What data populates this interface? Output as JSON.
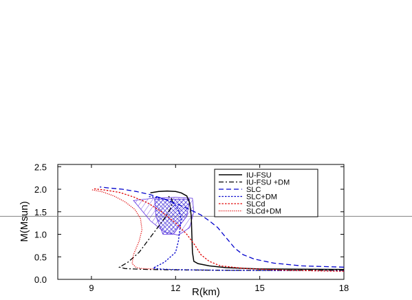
{
  "chart_data": {
    "type": "line",
    "xlabel": "R(km)",
    "ylabel": "M(Msun)",
    "xlim": [
      7.8,
      18
    ],
    "ylim": [
      0,
      2.55
    ],
    "xticks": [
      9,
      12,
      15,
      18
    ],
    "xtick_labels": [
      "9",
      "12",
      "15",
      "18"
    ],
    "yticks": [
      0.0,
      0.5,
      1.0,
      1.5,
      2.0,
      2.5
    ],
    "ytick_labels": [
      "0.0",
      "0.5",
      "1.0",
      "1.5",
      "2.0",
      "2.5"
    ],
    "reference_line": {
      "y": 1.4,
      "color": "#808080"
    },
    "legend_position": "top-right",
    "series": [
      {
        "name": "IU-FSU",
        "color": "#000000",
        "dash": "solid",
        "x": [
          18.0,
          15.0,
          13.8,
          13.2,
          12.8,
          12.65,
          12.6,
          12.58,
          12.56,
          12.5,
          12.4,
          12.2,
          12.0,
          11.7,
          11.4,
          11.1
        ],
        "y": [
          0.22,
          0.23,
          0.26,
          0.3,
          0.35,
          0.4,
          0.6,
          1.0,
          1.4,
          1.7,
          1.85,
          1.92,
          1.95,
          1.96,
          1.95,
          1.92
        ]
      },
      {
        "name": "IU-FSU +DM",
        "color": "#000000",
        "dash": "dashdot",
        "x": [
          18.0,
          14.0,
          12.0,
          11.0,
          10.5,
          10.2,
          10.0,
          10.3,
          10.7,
          11.0,
          11.3,
          11.6,
          11.8,
          11.9,
          11.85,
          11.7
        ],
        "y": [
          0.2,
          0.2,
          0.21,
          0.22,
          0.23,
          0.24,
          0.27,
          0.38,
          0.6,
          0.85,
          1.1,
          1.35,
          1.55,
          1.7,
          1.8,
          1.86
        ]
      },
      {
        "name": "SLC",
        "color": "#0000cc",
        "dash": "longdash",
        "x": [
          18.0,
          16.5,
          15.5,
          14.8,
          14.4,
          14.1,
          13.9,
          13.7,
          13.5,
          13.2,
          12.9,
          12.5,
          12.1,
          11.6,
          11.1,
          10.6,
          10.1,
          9.6,
          9.3
        ],
        "y": [
          0.27,
          0.3,
          0.36,
          0.45,
          0.55,
          0.7,
          0.85,
          1.0,
          1.15,
          1.3,
          1.43,
          1.55,
          1.66,
          1.78,
          1.88,
          1.95,
          2.0,
          2.03,
          2.05
        ]
      },
      {
        "name": "SLC+DM",
        "color": "#0000cc",
        "dash": "dotted",
        "x": [
          18.0,
          14.0,
          12.5,
          11.8,
          11.4,
          11.2,
          11.6,
          12.0,
          12.1,
          12.15,
          12.2,
          12.1,
          11.9,
          11.6,
          11.3,
          11.0
        ],
        "y": [
          0.19,
          0.2,
          0.21,
          0.22,
          0.23,
          0.25,
          0.38,
          0.6,
          0.85,
          1.1,
          1.35,
          1.55,
          1.7,
          1.78,
          1.82,
          1.84
        ]
      },
      {
        "name": "SLCd",
        "color": "#e00000",
        "dash": "dotted",
        "x": [
          18.0,
          16.0,
          14.5,
          13.6,
          13.2,
          12.9,
          12.7,
          12.4,
          12.0,
          11.5,
          11.0,
          10.5,
          10.0,
          9.5,
          9.1
        ],
        "y": [
          0.18,
          0.2,
          0.24,
          0.3,
          0.4,
          0.55,
          0.75,
          1.0,
          1.25,
          1.5,
          1.7,
          1.83,
          1.93,
          1.98,
          2.01
        ]
      },
      {
        "name": "SLCd+DM",
        "color": "#e00000",
        "dash": "densedot",
        "x": [
          11.2,
          10.8,
          10.6,
          10.45,
          10.5,
          10.7,
          10.8,
          10.75,
          10.55,
          10.2,
          9.8,
          9.4,
          9.0
        ],
        "y": [
          0.23,
          0.24,
          0.26,
          0.35,
          0.55,
          0.85,
          1.1,
          1.35,
          1.55,
          1.72,
          1.85,
          1.94,
          1.99
        ]
      }
    ],
    "shaded_regions": [
      {
        "style": "hatched",
        "color": "#5a2ee0",
        "x": [
          10.5,
          11.2,
          12.0,
          12.6,
          12.65,
          12.5,
          12.1,
          11.6,
          11.1,
          10.7,
          10.5
        ],
        "y": [
          1.75,
          1.8,
          1.82,
          1.8,
          1.5,
          1.15,
          0.98,
          1.05,
          1.3,
          1.6,
          1.75
        ]
      },
      {
        "style": "crosshatched",
        "color": "#5a2ee0",
        "x": [
          11.25,
          12.5,
          12.4,
          11.9,
          11.55,
          11.3,
          11.25
        ],
        "y": [
          1.78,
          1.78,
          1.4,
          1.0,
          1.0,
          1.4,
          1.78
        ]
      }
    ]
  }
}
